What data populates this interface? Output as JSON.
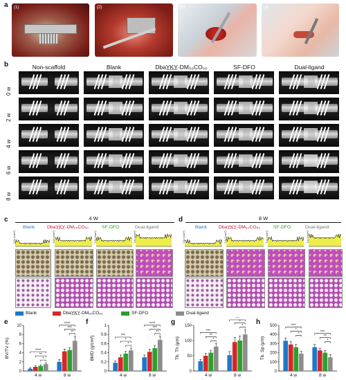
{
  "panel_letters": {
    "a": "a",
    "b": "b",
    "c": "c",
    "d": "d",
    "e": "e",
    "f": "f",
    "g": "g",
    "h": "h"
  },
  "photos": [
    {
      "label": "(1)"
    },
    {
      "label": "(2)"
    },
    {
      "label": "(3)"
    },
    {
      "label": "(4)"
    }
  ],
  "panel_b": {
    "columns": [
      "Non-scaffold",
      "Blank",
      "DbaY̲K̲Y̲-DM₅₀CO₅₀",
      "SF-DFO",
      "Dual-ligand"
    ],
    "rows": [
      "0 w",
      "2 w",
      "4 w",
      "6 w",
      "8 w"
    ],
    "scale": "6 mm"
  },
  "panel_c": {
    "title": "4 W",
    "groups": [
      "Blank",
      "DbaY̲K̲Y̲-DM₅₀CO₅₀",
      "SF-DFO",
      "Dual-ligand"
    ],
    "ylabel": "T.Ar (mm²)"
  },
  "panel_d": {
    "title": "8 W",
    "groups": [
      "Blank",
      "DbaY̲K̲Y̲-DM₅₀CO₅₀",
      "SF-DFO",
      "Dual-ligand"
    ],
    "ylabel": "T.Ar (mm²)"
  },
  "legend": [
    "Blank",
    "DbaY̲K̲Y̲-DM₅₀CO₅₀",
    "SF-DFO",
    "Dual-ligand"
  ],
  "colors": {
    "Blank": "#1f77c8",
    "DbaYKY": "#d62728",
    "SF-DFO": "#2ca02c",
    "Dual": "#8c8c8c",
    "blank_text": "#1f77c8",
    "dbay_text": "#c0142b",
    "sfdfo_text": "#2e9e2e",
    "dual_text": "#777777"
  },
  "chart_data": [
    {
      "type": "bar",
      "panel": "e",
      "categories": [
        "4 w",
        "8 w"
      ],
      "series": [
        {
          "name": "Blank",
          "values": [
            0.5,
            2.0
          ]
        },
        {
          "name": "DbaY̲K̲Y̲-DM₅₀CO₅₀",
          "values": [
            0.9,
            4.3
          ]
        },
        {
          "name": "SF-DFO",
          "values": [
            1.1,
            4.6
          ]
        },
        {
          "name": "Dual-ligand",
          "values": [
            1.5,
            6.6
          ]
        }
      ],
      "errors": [
        [
          0.2,
          0.5
        ],
        [
          0.2,
          0.5
        ],
        [
          0.2,
          0.5
        ],
        [
          0.3,
          1.0
        ]
      ],
      "ylabel": "BV/TV (%)",
      "ylim": [
        0,
        10
      ],
      "yticks": [
        0,
        2,
        4,
        6,
        8,
        10
      ],
      "sig": [
        {
          "cat": 0,
          "from": 0,
          "to": 3,
          "label": "****"
        },
        {
          "cat": 0,
          "from": 1,
          "to": 3,
          "label": "**"
        },
        {
          "cat": 0,
          "from": 2,
          "to": 3,
          "label": "*"
        },
        {
          "cat": 1,
          "from": 0,
          "to": 3,
          "label": "****"
        },
        {
          "cat": 1,
          "from": 1,
          "to": 3,
          "label": "***"
        },
        {
          "cat": 1,
          "from": 2,
          "to": 3,
          "label": "**"
        }
      ]
    },
    {
      "type": "bar",
      "panel": "f",
      "categories": [
        "4 w",
        "8 w"
      ],
      "series": [
        {
          "name": "Blank",
          "values": [
            0.18,
            0.3
          ]
        },
        {
          "name": "DbaY̲K̲Y̲-DM₅₀CO₅₀",
          "values": [
            0.3,
            0.42
          ]
        },
        {
          "name": "SF-DFO",
          "values": [
            0.38,
            0.5
          ]
        },
        {
          "name": "Dual-ligand",
          "values": [
            0.45,
            0.68
          ]
        }
      ],
      "errors": [
        [
          0.04,
          0.05
        ],
        [
          0.05,
          0.06
        ],
        [
          0.05,
          0.06
        ],
        [
          0.05,
          0.08
        ]
      ],
      "ylabel": "BMD (g/cm³)",
      "ylim": [
        0,
        1.0
      ],
      "yticks": [
        0,
        0.2,
        0.4,
        0.6,
        0.8,
        1.0
      ],
      "sig": [
        {
          "cat": 0,
          "from": 0,
          "to": 3,
          "label": "***"
        },
        {
          "cat": 0,
          "from": 1,
          "to": 3,
          "label": "*"
        },
        {
          "cat": 0,
          "from": 2,
          "to": 3,
          "label": "*"
        },
        {
          "cat": 1,
          "from": 0,
          "to": 3,
          "label": "****"
        },
        {
          "cat": 1,
          "from": 1,
          "to": 3,
          "label": "***"
        },
        {
          "cat": 1,
          "from": 2,
          "to": 3,
          "label": "**"
        }
      ]
    },
    {
      "type": "bar",
      "panel": "g",
      "categories": [
        "4 w",
        "8 w"
      ],
      "series": [
        {
          "name": "Blank",
          "values": [
            32,
            52
          ]
        },
        {
          "name": "DbaY̲K̲Y̲-DM₅₀CO₅₀",
          "values": [
            50,
            95
          ]
        },
        {
          "name": "SF-DFO",
          "values": [
            60,
            100
          ]
        },
        {
          "name": "Dual-ligand",
          "values": [
            80,
            120
          ]
        }
      ],
      "errors": [
        [
          6,
          12
        ],
        [
          8,
          15
        ],
        [
          8,
          15
        ],
        [
          10,
          15
        ]
      ],
      "ylabel": "Tb. Th (μm)",
      "ylim": [
        0,
        150
      ],
      "yticks": [
        0,
        50,
        100,
        150
      ],
      "sig": [
        {
          "cat": 0,
          "from": 0,
          "to": 3,
          "label": "***"
        },
        {
          "cat": 0,
          "from": 1,
          "to": 3,
          "label": "**"
        },
        {
          "cat": 0,
          "from": 2,
          "to": 3,
          "label": "*"
        },
        {
          "cat": 1,
          "from": 0,
          "to": 3,
          "label": "***"
        },
        {
          "cat": 1,
          "from": 1,
          "to": 3,
          "label": "*"
        },
        {
          "cat": 1,
          "from": 2,
          "to": 3,
          "label": "*"
        }
      ]
    },
    {
      "type": "bar",
      "panel": "h",
      "categories": [
        "4 w",
        "8 w"
      ],
      "series": [
        {
          "name": "Blank",
          "values": [
            330,
            260
          ]
        },
        {
          "name": "DbaY̲K̲Y̲-DM₅₀CO₅₀",
          "values": [
            290,
            225
          ]
        },
        {
          "name": "SF-DFO",
          "values": [
            260,
            200
          ]
        },
        {
          "name": "Dual-ligand",
          "values": [
            190,
            150
          ]
        }
      ],
      "errors": [
        [
          30,
          30
        ],
        [
          30,
          25
        ],
        [
          30,
          25
        ],
        [
          25,
          30
        ]
      ],
      "ylabel": "Tb. Sp (μm)",
      "ylim": [
        0,
        500
      ],
      "yticks": [
        0,
        100,
        200,
        300,
        400,
        500
      ],
      "sig": [
        {
          "cat": 0,
          "from": 0,
          "to": 3,
          "label": "***"
        },
        {
          "cat": 0,
          "from": 1,
          "to": 3,
          "label": "*"
        },
        {
          "cat": 0,
          "from": 2,
          "to": 3,
          "label": "*"
        },
        {
          "cat": 1,
          "from": 0,
          "to": 3,
          "label": "***"
        },
        {
          "cat": 1,
          "from": 1,
          "to": 3,
          "label": "**"
        },
        {
          "cat": 1,
          "from": 2,
          "to": 3,
          "label": "*"
        }
      ]
    }
  ]
}
